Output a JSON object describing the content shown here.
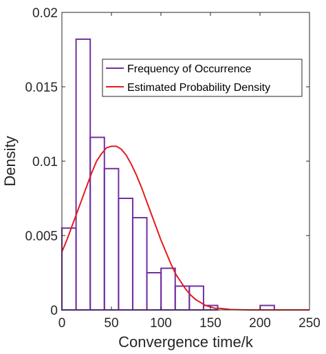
{
  "chart_data": {
    "type": "bar",
    "xlabel": "Convergence time/k",
    "ylabel": "Density",
    "xlim": [
      0,
      250
    ],
    "ylim": [
      0,
      0.02
    ],
    "xticks": [
      0,
      50,
      100,
      150,
      200,
      250
    ],
    "xtick_labels": [
      "0",
      "50",
      "100",
      "150",
      "200",
      "250"
    ],
    "yticks": [
      0,
      0.005,
      0.01,
      0.015,
      0.02
    ],
    "ytick_labels": [
      "0",
      "0.005",
      "0.01",
      "0.015",
      "0.02"
    ],
    "grid": false,
    "legend_position": "top-right",
    "series": [
      {
        "name": "Frequency of Occurrence",
        "type": "histogram",
        "color": "#7030A0",
        "bin_edges": [
          0,
          14.3,
          28.6,
          42.9,
          57.2,
          71.5,
          85.8,
          100.1,
          114.4,
          128.7,
          143,
          157.3,
          171.6,
          185.9,
          200.2,
          214.5,
          228.8
        ],
        "values": [
          0.0055,
          0.0182,
          0.0116,
          0.0095,
          0.0075,
          0.0062,
          0.0025,
          0.0028,
          0.0016,
          0.0016,
          0.0003,
          0,
          0,
          0,
          0.0003,
          0
        ]
      },
      {
        "name": "Estimated Probability Density",
        "type": "line",
        "color": "#E41A1C",
        "x": [
          0,
          5,
          10,
          15,
          20,
          25,
          30,
          35,
          40,
          45,
          50,
          55,
          60,
          65,
          70,
          75,
          80,
          85,
          90,
          95,
          100,
          105,
          110,
          115,
          120,
          125,
          130,
          135,
          140,
          145,
          150,
          155,
          160,
          170,
          180,
          190,
          200,
          225,
          250
        ],
        "y": [
          0.0039,
          0.0047,
          0.0056,
          0.0065,
          0.0074,
          0.0083,
          0.0092,
          0.01,
          0.0105,
          0.0109,
          0.011,
          0.011,
          0.0108,
          0.0104,
          0.0098,
          0.0091,
          0.0083,
          0.0074,
          0.0065,
          0.0056,
          0.0047,
          0.0039,
          0.0031,
          0.0024,
          0.0019,
          0.0014,
          0.001,
          0.0007,
          0.0005,
          0.0003,
          0.0002,
          0.0001,
          0.0001,
          3e-05,
          1e-05,
          0,
          0,
          0,
          0
        ]
      }
    ]
  }
}
